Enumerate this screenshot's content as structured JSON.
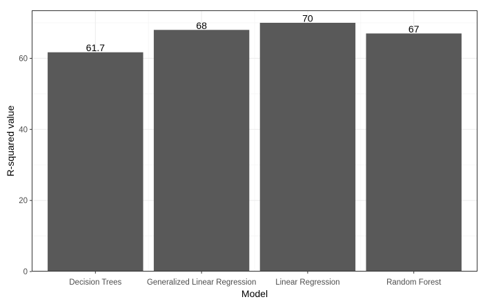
{
  "chart_data": {
    "type": "bar",
    "categories": [
      "Decision Trees",
      "Generalized Linear Regression",
      "Linear Regression",
      "Random Forest"
    ],
    "values": [
      61.7,
      68,
      70,
      67
    ],
    "data_labels": [
      "61.7",
      "68",
      "70",
      "67"
    ],
    "xlabel": "Model",
    "ylabel": "R-squared value",
    "ylim": [
      0,
      73.5
    ],
    "yticks": [
      0,
      20,
      40,
      60
    ],
    "grid": true,
    "legend": "none",
    "colors": {
      "bar": "#595959",
      "grid_major": "#ebebeb",
      "grid_minor": "#f5f5f5",
      "panel_border": "#333333"
    }
  }
}
